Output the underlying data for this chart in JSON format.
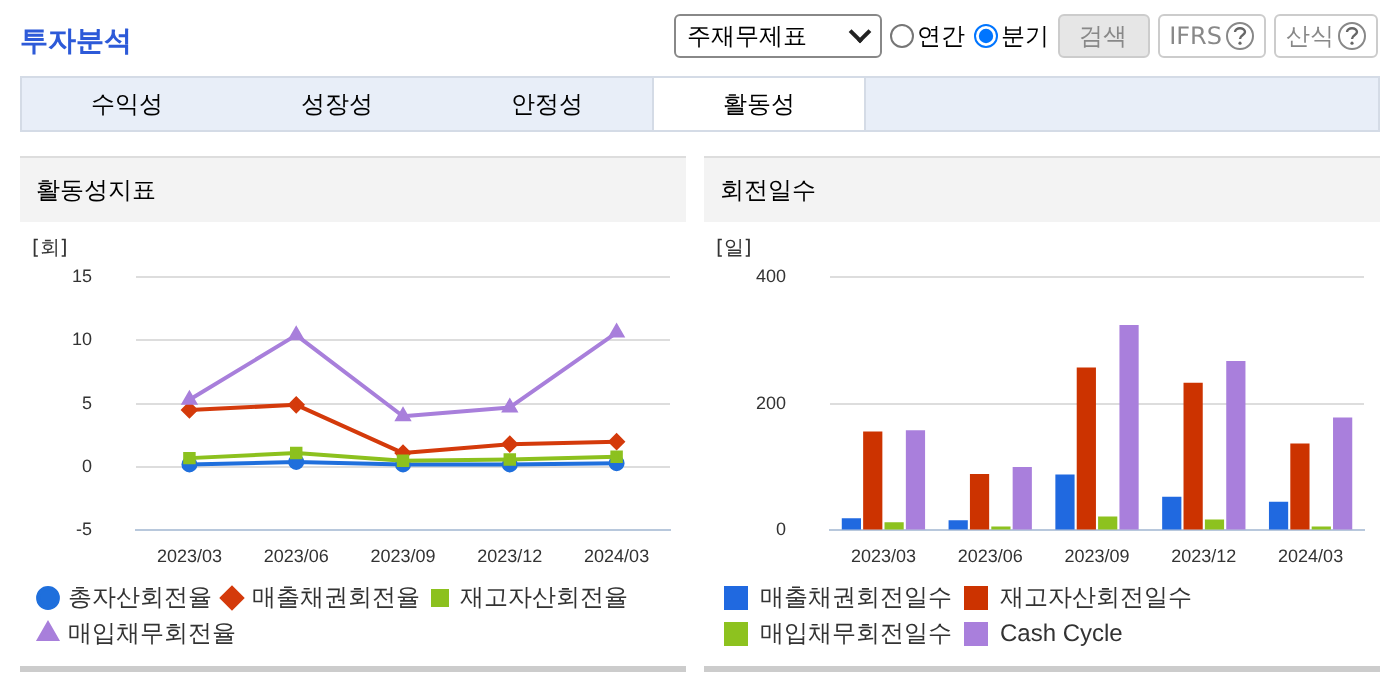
{
  "chart_data": [
    {
      "type": "line",
      "title": "활동성지표",
      "ylabel": "[회]",
      "annotations": [
        "투자분석",
        "주재무제표",
        "연간",
        "분기",
        "검색",
        "IFRS",
        "산식",
        "수익성",
        "성장성",
        "안정성",
        "활동성"
      ],
      "categories": [
        "2023/03",
        "2023/06",
        "2023/09",
        "2023/12",
        "2024/03"
      ],
      "series": [
        {
          "name": "총자산회전율",
          "color": "#1f6fdc",
          "marker": "circle",
          "values": [
            0.2,
            0.4,
            0.2,
            0.2,
            0.3
          ]
        },
        {
          "name": "매출채권회전율",
          "color": "#d43a0b",
          "marker": "diamond",
          "values": [
            4.5,
            4.9,
            1.1,
            1.8,
            2.0
          ]
        },
        {
          "name": "재고자산회전율",
          "color": "#8cc11e",
          "marker": "square",
          "values": [
            0.7,
            1.1,
            0.5,
            0.6,
            0.8
          ]
        },
        {
          "name": "매입채무회전율",
          "color": "#a87fdb",
          "marker": "triangle",
          "values": [
            5.3,
            10.4,
            4.0,
            4.7,
            10.6
          ]
        }
      ],
      "ylim": [
        -5,
        15
      ],
      "yticks": [
        -5,
        0,
        5,
        10,
        15
      ],
      "grid": "y",
      "legend": "bottom"
    },
    {
      "type": "bar",
      "title": "회전일수",
      "ylabel": "[일]",
      "categories": [
        "2023/03",
        "2023/06",
        "2023/09",
        "2023/12",
        "2024/03"
      ],
      "series": [
        {
          "name": "매출채권회전일수",
          "color": "#2069e0",
          "values": [
            19,
            16,
            88,
            53,
            45
          ]
        },
        {
          "name": "재고자산회전일수",
          "color": "#cc3300",
          "values": [
            156,
            89,
            257,
            233,
            137
          ]
        },
        {
          "name": "매입채무회전일수",
          "color": "#8dc21f",
          "values": [
            13,
            6,
            22,
            17,
            6
          ]
        },
        {
          "name": "Cash Cycle",
          "color": "#a97fdc",
          "values": [
            158,
            100,
            324,
            267,
            178
          ]
        }
      ],
      "ylim": [
        0,
        400
      ],
      "yticks": [
        0,
        200,
        400
      ],
      "grid": "y",
      "legend": "bottom"
    }
  ]
}
